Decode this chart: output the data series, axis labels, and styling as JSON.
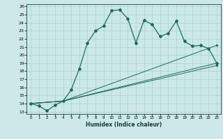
{
  "xlabel": "Humidex (Indice chaleur)",
  "ylabel": "",
  "bg_color": "#cce8e8",
  "grid_color": "#aad0d0",
  "line_color": "#1a6b5a",
  "xlim": [
    -0.5,
    23.5
  ],
  "ylim": [
    13,
    26
  ],
  "xticks": [
    0,
    1,
    2,
    3,
    4,
    5,
    6,
    7,
    8,
    9,
    10,
    11,
    12,
    13,
    14,
    15,
    16,
    17,
    18,
    19,
    20,
    21,
    22,
    23
  ],
  "yticks": [
    13,
    14,
    15,
    16,
    17,
    18,
    19,
    20,
    21,
    22,
    23,
    24,
    25,
    26
  ],
  "series0_x": [
    0,
    1,
    2,
    3,
    4,
    5,
    6,
    7,
    8,
    9,
    10,
    11,
    12,
    13,
    14,
    15,
    16,
    17,
    18,
    19,
    20,
    21,
    22,
    23
  ],
  "series0_y": [
    14.0,
    13.7,
    13.1,
    13.8,
    14.3,
    15.7,
    18.3,
    21.5,
    23.0,
    23.6,
    25.5,
    25.6,
    24.5,
    21.5,
    24.3,
    23.8,
    22.3,
    22.7,
    24.2,
    21.7,
    21.1,
    21.2,
    20.8,
    19.0
  ],
  "series1_x": [
    0,
    4,
    23
  ],
  "series1_y": [
    14.0,
    14.3,
    21.2
  ],
  "series2_x": [
    0,
    4,
    23
  ],
  "series2_y": [
    14.0,
    14.3,
    19.0
  ],
  "series3_x": [
    0,
    4,
    23
  ],
  "series3_y": [
    14.0,
    14.3,
    18.7
  ]
}
